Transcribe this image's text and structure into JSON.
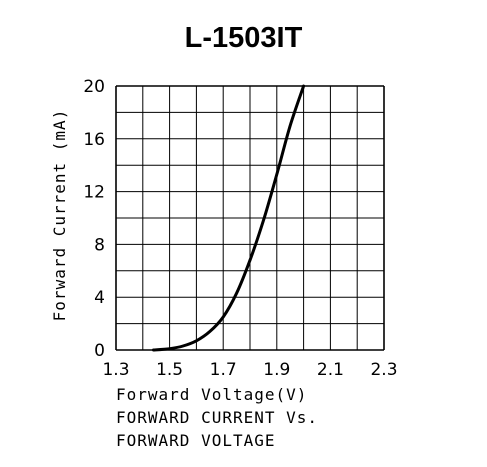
{
  "chart_data": {
    "type": "line",
    "title": "L-1503IT",
    "xlabel": "Forward Voltage(V)",
    "ylabel": "Forward Current (mA)",
    "caption": [
      "FORWARD CURRENT Vs.",
      "FORWARD VOLTAGE"
    ],
    "xlim": [
      1.3,
      2.3
    ],
    "ylim": [
      0,
      20
    ],
    "x_ticks": [
      "1.3",
      "1.5",
      "1.7",
      "1.9",
      "2.1",
      "2.3"
    ],
    "y_ticks": [
      "0",
      "4",
      "8",
      "12",
      "16",
      "20"
    ],
    "grid": true,
    "series": [
      {
        "x": [
          1.44,
          1.5,
          1.55,
          1.6,
          1.65,
          1.7,
          1.75,
          1.8,
          1.85,
          1.9,
          1.95,
          2.0
        ],
        "y": [
          0.0,
          0.1,
          0.3,
          0.7,
          1.4,
          2.5,
          4.3,
          6.8,
          9.8,
          13.3,
          17.0,
          20.0
        ]
      }
    ]
  }
}
